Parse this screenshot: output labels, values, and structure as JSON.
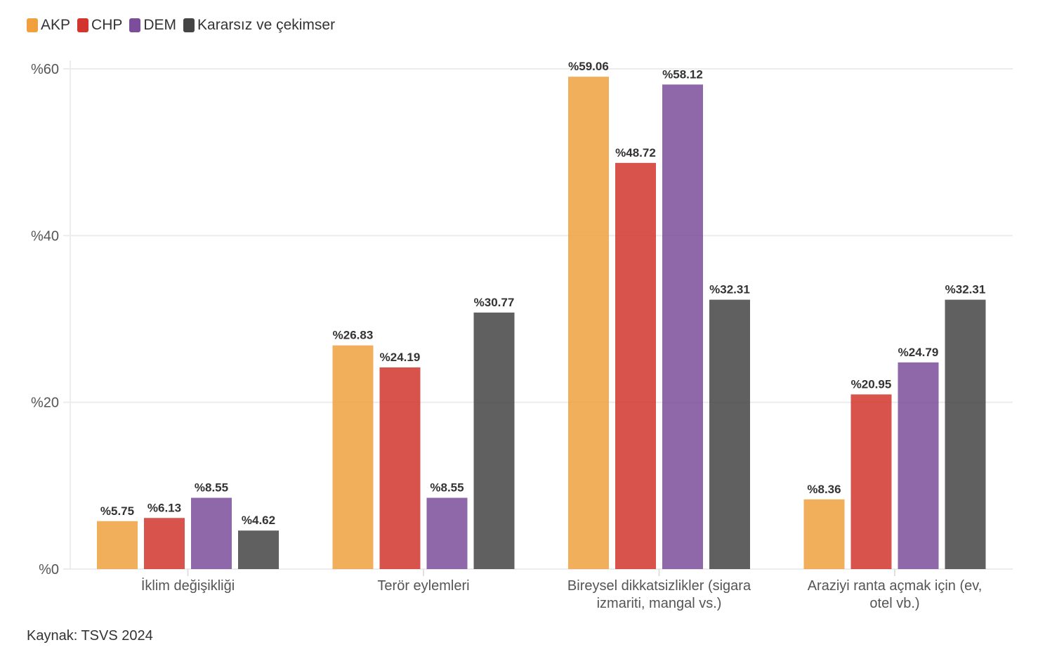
{
  "chart_data": {
    "type": "bar",
    "title": "",
    "xlabel": "",
    "ylabel": "",
    "ylim": [
      0,
      60
    ],
    "yticks": [
      0,
      20,
      40,
      60
    ],
    "ytick_labels": [
      "%0",
      "%20",
      "%40",
      "%60"
    ],
    "grid": true,
    "legend_position": "top-left",
    "categories": [
      [
        "İklim değişikliği"
      ],
      [
        "Terör eylemleri"
      ],
      [
        "Bireysel dikkatsizlikler (sigara",
        "izmariti, mangal vs.)"
      ],
      [
        "Araziyi ranta açmak için (ev,",
        "otel vb.)"
      ]
    ],
    "series": [
      {
        "name": "AKP",
        "color": "#F0A13E",
        "values": [
          5.75,
          26.83,
          59.06,
          8.36
        ],
        "labels": [
          "%5.75",
          "%26.83",
          "%59.06",
          "%8.36"
        ]
      },
      {
        "name": "CHP",
        "color": "#D2352E",
        "values": [
          6.13,
          24.19,
          48.72,
          20.95
        ],
        "labels": [
          "%6.13",
          "%24.19",
          "%48.72",
          "%20.95"
        ]
      },
      {
        "name": "DEM",
        "color": "#7B4D9B",
        "values": [
          8.55,
          8.55,
          58.12,
          24.79
        ],
        "labels": [
          "%8.55",
          "%8.55",
          "%58.12",
          "%24.79"
        ]
      },
      {
        "name": "Kararsız ve çekimser",
        "color": "#444444",
        "values": [
          4.62,
          30.77,
          32.31,
          32.31
        ],
        "labels": [
          "%4.62",
          "%30.77",
          "%32.31",
          "%32.31"
        ]
      }
    ]
  },
  "source": "Kaynak: TSVS 2024"
}
